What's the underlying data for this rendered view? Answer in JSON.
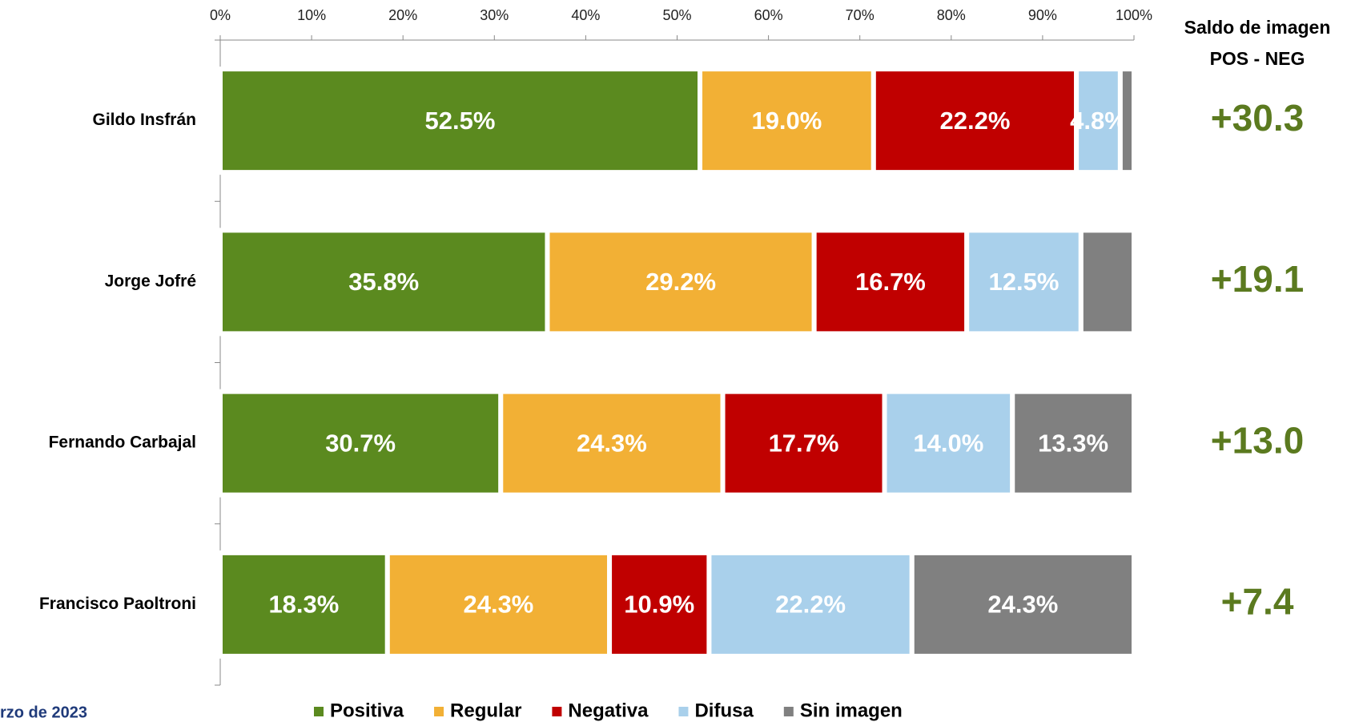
{
  "chart_data": {
    "type": "stacked_barh",
    "categories": [
      "Gildo Insfrán",
      "Jorge Jofré",
      "Fernando Carbajal",
      "Francisco Paoltroni"
    ],
    "series": [
      {
        "name": "Positiva",
        "color": "#5b8a1f",
        "values": [
          52.5,
          35.8,
          30.7,
          18.3
        ],
        "value_labels": [
          "52.5%",
          "35.8%",
          "30.7%",
          "18.3%"
        ]
      },
      {
        "name": "Regular",
        "color": "#f2b035",
        "values": [
          19.0,
          29.2,
          24.3,
          24.3
        ],
        "value_labels": [
          "19.0%",
          "29.2%",
          "24.3%",
          "24.3%"
        ]
      },
      {
        "name": "Negativa",
        "color": "#c00000",
        "values": [
          22.2,
          16.7,
          17.7,
          10.9
        ],
        "value_labels": [
          "22.2%",
          "16.7%",
          "17.7%",
          "10.9%"
        ]
      },
      {
        "name": "Difusa",
        "color": "#a9d0eb",
        "values": [
          4.8,
          12.5,
          14.0,
          22.2
        ],
        "value_labels": [
          "4.8%",
          "12.5%",
          "14.0%",
          "22.2%"
        ]
      },
      {
        "name": "Sin imagen",
        "color": "#808080",
        "values": [
          1.5,
          5.8,
          13.3,
          24.3
        ],
        "value_labels": [
          null,
          null,
          "13.3%",
          "24.3%"
        ]
      }
    ],
    "xlim": [
      0,
      100
    ],
    "xticks": [
      {
        "value": 0,
        "label": "0%"
      },
      {
        "value": 10,
        "label": "10%"
      },
      {
        "value": 20,
        "label": "20%"
      },
      {
        "value": 30,
        "label": "30%"
      },
      {
        "value": 40,
        "label": "40%"
      },
      {
        "value": 50,
        "label": "50%"
      },
      {
        "value": 60,
        "label": "60%"
      },
      {
        "value": 70,
        "label": "70%"
      },
      {
        "value": 80,
        "label": "80%"
      },
      {
        "value": 90,
        "label": "90%"
      },
      {
        "value": 100,
        "label": "100%"
      }
    ],
    "saldo_title": "Saldo de imagen",
    "saldo_subtitle": "POS - NEG",
    "saldo_labels": [
      "+30.3",
      "+19.1",
      "+13.0",
      "+7.4"
    ],
    "footnote": "rzo de 2023",
    "legend": "bottom"
  }
}
